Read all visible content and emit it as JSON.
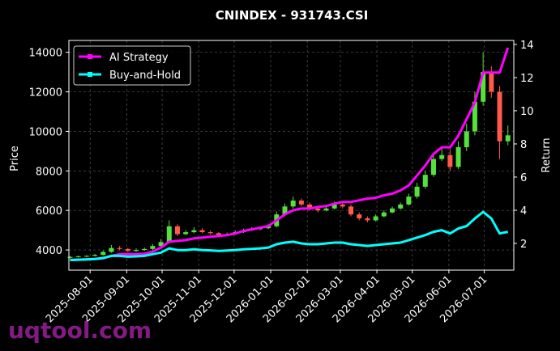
{
  "chart_data": {
    "type": "candlestick",
    "title": "CNINDEX - 931743.CSI",
    "ylabel": "Price",
    "y2label": "Return",
    "x": [
      "2025-07-15",
      "2025-07-22",
      "2025-07-29",
      "2025-08-05",
      "2025-08-12",
      "2025-08-19",
      "2025-08-26",
      "2025-09-02",
      "2025-09-09",
      "2025-09-16",
      "2025-09-23",
      "2025-09-30",
      "2025-10-07",
      "2025-10-14",
      "2025-10-21",
      "2025-10-28",
      "2025-11-04",
      "2025-11-11",
      "2025-11-18",
      "2025-11-25",
      "2025-12-02",
      "2025-12-09",
      "2025-12-16",
      "2025-12-23",
      "2025-12-30",
      "2026-01-06",
      "2026-01-13",
      "2026-01-20",
      "2026-01-27",
      "2026-02-03",
      "2026-02-10",
      "2026-02-17",
      "2026-02-24",
      "2026-03-03",
      "2026-03-10",
      "2026-03-17",
      "2026-03-24",
      "2026-03-31",
      "2026-04-07",
      "2026-04-14",
      "2026-04-21",
      "2026-04-28",
      "2026-05-05",
      "2026-05-12",
      "2026-05-19",
      "2026-05-26",
      "2026-06-02",
      "2026-06-09",
      "2026-06-16",
      "2026-06-23",
      "2026-06-30",
      "2026-07-07",
      "2026-07-14",
      "2026-07-21"
    ],
    "open": [
      3600,
      3650,
      3680,
      3700,
      3750,
      3900,
      4100,
      4050,
      3950,
      4000,
      4050,
      4200,
      4400,
      5200,
      4800,
      4900,
      5000,
      4900,
      4850,
      4750,
      4800,
      4900,
      5000,
      5050,
      5100,
      5200,
      5800,
      6200,
      6500,
      6300,
      6100,
      6000,
      6100,
      6300,
      6200,
      5800,
      5600,
      5500,
      5700,
      5900,
      6100,
      6300,
      6700,
      7200,
      7800,
      8600,
      8800,
      8200,
      9200,
      10000,
      11500,
      13000,
      12000,
      9500
    ],
    "high": [
      3700,
      3720,
      3740,
      3800,
      3980,
      4250,
      4200,
      4100,
      4080,
      4120,
      4300,
      4550,
      5500,
      5300,
      5000,
      5150,
      5100,
      4980,
      4900,
      4880,
      4980,
      5080,
      5150,
      5180,
      5300,
      5950,
      6350,
      6700,
      6600,
      6400,
      6200,
      6250,
      6450,
      6400,
      6300,
      5900,
      5700,
      5800,
      6000,
      6200,
      6400,
      6850,
      7400,
      8000,
      8900,
      9200,
      9100,
      9500,
      10400,
      12000,
      14000,
      13300,
      12300,
      10300
    ],
    "low": [
      3560,
      3610,
      3640,
      3670,
      3720,
      3860,
      3980,
      3900,
      3900,
      3960,
      4000,
      4150,
      4350,
      4700,
      4750,
      4850,
      4850,
      4780,
      4680,
      4700,
      4760,
      4860,
      4960,
      5000,
      5050,
      5150,
      5700,
      6100,
      6200,
      6000,
      5900,
      5950,
      6050,
      6100,
      5700,
      5500,
      5400,
      5450,
      5650,
      5850,
      6050,
      6250,
      6600,
      7100,
      7700,
      8500,
      8000,
      8100,
      9000,
      9800,
      11300,
      11700,
      8600,
      9300
    ],
    "close": [
      3650,
      3680,
      3700,
      3750,
      3900,
      4100,
      4050,
      3950,
      4000,
      4050,
      4200,
      4400,
      5200,
      4800,
      4900,
      5000,
      4900,
      4850,
      4750,
      4800,
      4900,
      5000,
      5050,
      5100,
      5200,
      5800,
      6200,
      6500,
      6300,
      6100,
      6000,
      6100,
      6300,
      6200,
      5800,
      5600,
      5500,
      5700,
      5900,
      6100,
      6300,
      6700,
      7200,
      7800,
      8600,
      8800,
      8200,
      9200,
      10000,
      11500,
      13000,
      12000,
      9500,
      9800
    ],
    "up_color": "#55e03c",
    "down_color": "#ff5a4a",
    "series": [
      {
        "name": "AI Strategy",
        "color": "#ff00ff",
        "axis": "y2",
        "values": [
          1.0,
          1.02,
          1.04,
          1.06,
          1.1,
          1.25,
          1.35,
          1.35,
          1.35,
          1.38,
          1.5,
          1.75,
          2.1,
          2.15,
          2.2,
          2.3,
          2.35,
          2.4,
          2.45,
          2.5,
          2.6,
          2.75,
          2.85,
          2.95,
          3.05,
          3.4,
          3.75,
          4.0,
          4.1,
          4.1,
          4.2,
          4.25,
          4.4,
          4.5,
          4.5,
          4.6,
          4.7,
          4.75,
          4.9,
          5.0,
          5.2,
          5.5,
          6.1,
          6.7,
          7.4,
          7.8,
          7.8,
          8.5,
          9.5,
          10.5,
          12.3,
          12.3,
          12.3,
          13.8
        ]
      },
      {
        "name": "Buy-and-Hold",
        "color": "#00ffff",
        "axis": "y2",
        "values": [
          1.0,
          1.02,
          1.04,
          1.06,
          1.12,
          1.25,
          1.25,
          1.2,
          1.22,
          1.25,
          1.35,
          1.45,
          1.7,
          1.6,
          1.6,
          1.65,
          1.6,
          1.58,
          1.55,
          1.57,
          1.6,
          1.65,
          1.67,
          1.7,
          1.75,
          1.95,
          2.05,
          2.1,
          2.0,
          1.95,
          1.95,
          2.0,
          2.05,
          2.05,
          1.95,
          1.9,
          1.85,
          1.9,
          1.95,
          2.0,
          2.05,
          2.2,
          2.35,
          2.5,
          2.7,
          2.8,
          2.6,
          2.9,
          3.05,
          3.5,
          3.9,
          3.5,
          2.6,
          2.7
        ]
      }
    ],
    "xlim": [
      "2025-07-14",
      "2026-07-26"
    ],
    "xticks": [
      "2025-08-01",
      "2025-09-01",
      "2025-10-01",
      "2025-11-01",
      "2025-12-01",
      "2026-01-01",
      "2026-02-01",
      "2026-03-01",
      "2026-04-01",
      "2026-05-01",
      "2026-06-01",
      "2026-07-01"
    ],
    "ylim": [
      2980,
      14600
    ],
    "yticks": [
      4000,
      6000,
      8000,
      10000,
      12000,
      14000
    ],
    "y2lim": [
      0.39,
      14.24
    ],
    "y2ticks": [
      2,
      4,
      6,
      8,
      10,
      12,
      14
    ],
    "grid": true,
    "legend": "upper left",
    "watermark": "uqtool.com"
  }
}
